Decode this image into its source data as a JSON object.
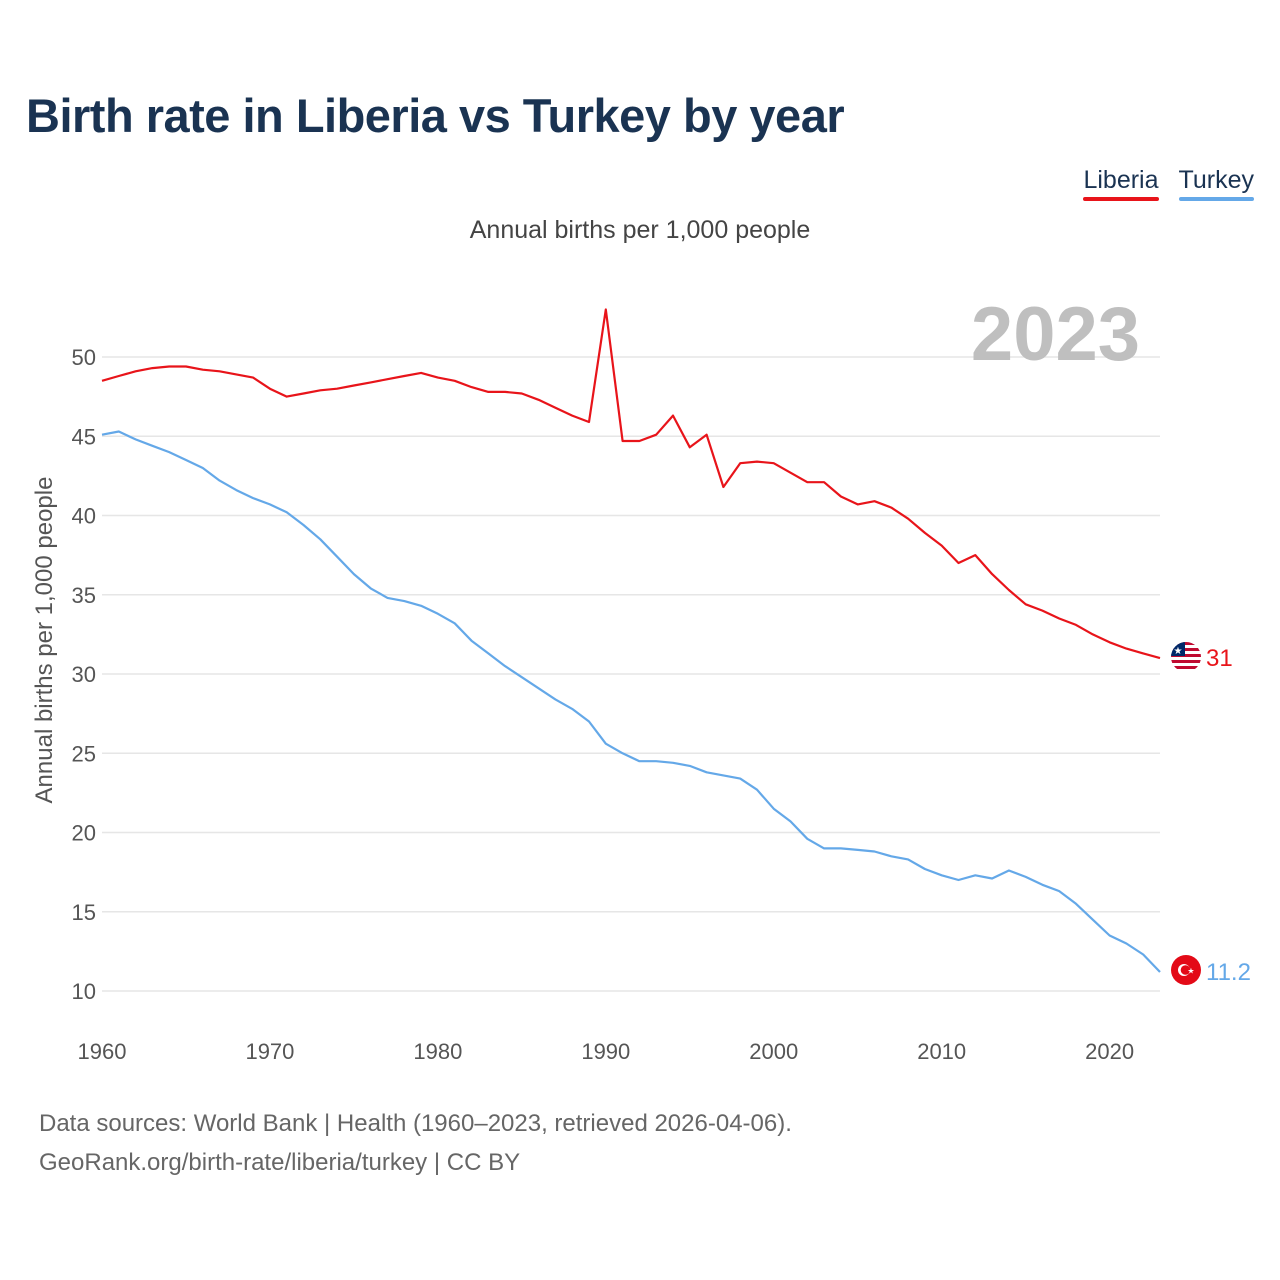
{
  "title": "Birth rate in Liberia vs Turkey by year",
  "subtitle": "Annual births per 1,000 people",
  "colors": {
    "liberia": "#e8141a",
    "turkey": "#64a8e8",
    "title": "#1a3352",
    "year_watermark": "#bfbfbf"
  },
  "legend": [
    {
      "name": "Liberia",
      "color": "#e8141a"
    },
    {
      "name": "Turkey",
      "color": "#64a8e8"
    }
  ],
  "footer": {
    "line1": "Data sources: World Bank | Health (1960–2023, retrieved 2026-04-06).",
    "line2": "GeoRank.org/birth-rate/liberia/turkey | CC BY"
  },
  "chart_data": {
    "type": "line",
    "title": "Birth rate in Liberia vs Turkey by year",
    "ylabel": "Annual births per 1,000 people",
    "xlabel": "",
    "current_year": "2023",
    "xlim": [
      1960,
      2023
    ],
    "ylim": [
      10,
      53
    ],
    "x_ticks": [
      "1960",
      "1970",
      "1980",
      "1990",
      "2000",
      "2010",
      "2020"
    ],
    "y_ticks": [
      "10",
      "15",
      "20",
      "25",
      "30",
      "35",
      "40",
      "45",
      "50"
    ],
    "x": [
      1960,
      1961,
      1962,
      1963,
      1964,
      1965,
      1966,
      1967,
      1968,
      1969,
      1970,
      1971,
      1972,
      1973,
      1974,
      1975,
      1976,
      1977,
      1978,
      1979,
      1980,
      1981,
      1982,
      1983,
      1984,
      1985,
      1986,
      1987,
      1988,
      1989,
      1990,
      1991,
      1992,
      1993,
      1994,
      1995,
      1996,
      1997,
      1998,
      1999,
      2000,
      2001,
      2002,
      2003,
      2004,
      2005,
      2006,
      2007,
      2008,
      2009,
      2010,
      2011,
      2012,
      2013,
      2014,
      2015,
      2016,
      2017,
      2018,
      2019,
      2020,
      2021,
      2022,
      2023
    ],
    "series": [
      {
        "name": "Liberia",
        "end_label": "31",
        "values": [
          48.5,
          48.8,
          49.1,
          49.3,
          49.4,
          49.4,
          49.2,
          49.1,
          48.9,
          48.7,
          48.0,
          47.5,
          47.7,
          47.9,
          48.0,
          48.2,
          48.4,
          48.6,
          48.8,
          49.0,
          48.7,
          48.5,
          48.1,
          47.8,
          47.8,
          47.7,
          47.3,
          46.8,
          46.3,
          45.9,
          53.0,
          44.7,
          44.7,
          45.1,
          46.3,
          44.3,
          45.1,
          41.8,
          43.3,
          43.4,
          43.3,
          42.7,
          42.1,
          42.1,
          41.2,
          40.7,
          40.9,
          40.5,
          39.8,
          38.9,
          38.1,
          37.0,
          37.5,
          36.3,
          35.3,
          34.4,
          34.0,
          33.5,
          33.1,
          32.5,
          32.0,
          31.6,
          31.3,
          31.0
        ]
      },
      {
        "name": "Turkey",
        "end_label": "11.2",
        "values": [
          45.1,
          45.3,
          44.8,
          44.4,
          44.0,
          43.5,
          43.0,
          42.2,
          41.6,
          41.1,
          40.7,
          40.2,
          39.4,
          38.5,
          37.4,
          36.3,
          35.4,
          34.8,
          34.6,
          34.3,
          33.8,
          33.2,
          32.1,
          31.3,
          30.5,
          29.8,
          29.1,
          28.4,
          27.8,
          27.0,
          25.6,
          25.0,
          24.5,
          24.5,
          24.4,
          24.2,
          23.8,
          23.6,
          23.4,
          22.7,
          21.5,
          20.7,
          19.6,
          19.0,
          19.0,
          18.9,
          18.8,
          18.5,
          18.3,
          17.7,
          17.3,
          17.0,
          17.3,
          17.1,
          17.6,
          17.2,
          16.7,
          16.3,
          15.5,
          14.5,
          13.5,
          13.0,
          12.3,
          11.2
        ]
      }
    ]
  }
}
